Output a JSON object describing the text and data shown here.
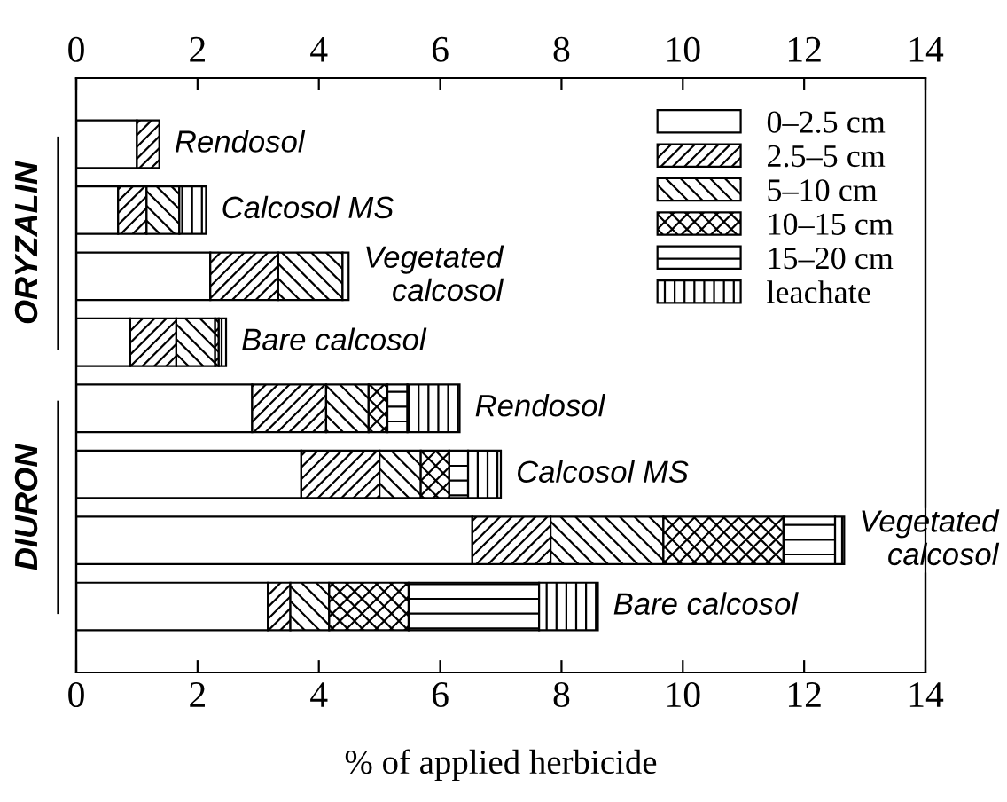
{
  "chart_data": {
    "type": "bar",
    "orientation": "horizontal",
    "stacked": true,
    "categories": [
      "Rendosol",
      "Calcosol MS",
      "Vegetated\ncalcosol",
      "Bare calcosol",
      "Rendosol",
      "Calcosol MS",
      "Vegetated\ncalcosol",
      "Bare calcosol"
    ],
    "series": [
      {
        "name": "0–2.5 cm",
        "color": "#ffffff",
        "values": [
          1.0,
          0.69,
          2.21,
          0.89,
          2.9,
          3.71,
          6.53,
          3.16
        ]
      },
      {
        "name": "2.5–5 cm",
        "color": "#000000",
        "values": [
          0.37,
          0.47,
          1.12,
          0.76,
          1.22,
          1.29,
          1.29,
          0.37
        ]
      },
      {
        "name": "5–10 cm",
        "color": "#000000",
        "values": [
          null,
          0.54,
          1.06,
          0.64,
          0.7,
          0.68,
          1.86,
          0.64
        ]
      },
      {
        "name": "10–15 cm",
        "color": "#000000",
        "values": [
          null,
          null,
          null,
          0.06,
          0.31,
          0.47,
          1.98,
          1.31
        ]
      },
      {
        "name": "15–20 cm",
        "color": "#000000",
        "values": [
          null,
          null,
          null,
          null,
          0.33,
          0.31,
          0.85,
          2.15
        ]
      },
      {
        "name": "leachate",
        "color": "#000000",
        "values": [
          null,
          0.44,
          0.1,
          0.12,
          0.86,
          0.54,
          0.15,
          0.97
        ]
      }
    ],
    "xlim": [
      0,
      14
    ],
    "xticks": [
      0,
      2,
      4,
      6,
      8,
      10,
      12,
      14
    ],
    "x2lim": [
      0,
      14
    ],
    "x2ticks": [
      0,
      2,
      4,
      6,
      8,
      10,
      12,
      14
    ],
    "xlabel": "% of applied herbicide",
    "annotations": [
      "ORYZALIN",
      "DIURON"
    ],
    "tick_labels": "x",
    "legend": "top right",
    "grid": false
  }
}
